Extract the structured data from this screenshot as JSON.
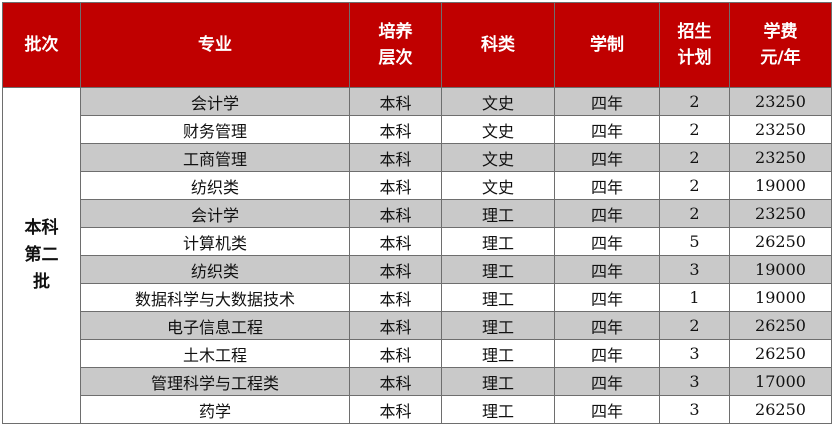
{
  "header": {
    "batch": "批次",
    "major": "专业",
    "level": "培养层次",
    "category": "科类",
    "duration": "学制",
    "plan": "招生计划",
    "fee": "学费元/年",
    "level_lines": [
      "培养",
      "层次"
    ],
    "plan_lines": [
      "招生",
      "计划"
    ],
    "fee_lines": [
      "学费",
      "元/年"
    ]
  },
  "batch_lines": [
    "本科",
    "第二",
    "批"
  ],
  "colors": {
    "header_bg": "#c00000",
    "stripe": "#c9c9c9",
    "border": "#6e6e6e"
  },
  "rows": [
    {
      "major": "会计学",
      "level": "本科",
      "category": "文史",
      "duration": "四年",
      "plan": "2",
      "fee": "23250"
    },
    {
      "major": "财务管理",
      "level": "本科",
      "category": "文史",
      "duration": "四年",
      "plan": "2",
      "fee": "23250"
    },
    {
      "major": "工商管理",
      "level": "本科",
      "category": "文史",
      "duration": "四年",
      "plan": "2",
      "fee": "23250"
    },
    {
      "major": "纺织类",
      "level": "本科",
      "category": "文史",
      "duration": "四年",
      "plan": "2",
      "fee": "19000"
    },
    {
      "major": "会计学",
      "level": "本科",
      "category": "理工",
      "duration": "四年",
      "plan": "2",
      "fee": "23250"
    },
    {
      "major": "计算机类",
      "level": "本科",
      "category": "理工",
      "duration": "四年",
      "plan": "5",
      "fee": "26250"
    },
    {
      "major": "纺织类",
      "level": "本科",
      "category": "理工",
      "duration": "四年",
      "plan": "3",
      "fee": "19000"
    },
    {
      "major": "数据科学与大数据技术",
      "level": "本科",
      "category": "理工",
      "duration": "四年",
      "plan": "1",
      "fee": "19000"
    },
    {
      "major": "电子信息工程",
      "level": "本科",
      "category": "理工",
      "duration": "四年",
      "plan": "2",
      "fee": "26250"
    },
    {
      "major": "土木工程",
      "level": "本科",
      "category": "理工",
      "duration": "四年",
      "plan": "3",
      "fee": "26250"
    },
    {
      "major": "管理科学与工程类",
      "level": "本科",
      "category": "理工",
      "duration": "四年",
      "plan": "3",
      "fee": "17000"
    },
    {
      "major": "药学",
      "level": "本科",
      "category": "理工",
      "duration": "四年",
      "plan": "3",
      "fee": "26250"
    }
  ]
}
